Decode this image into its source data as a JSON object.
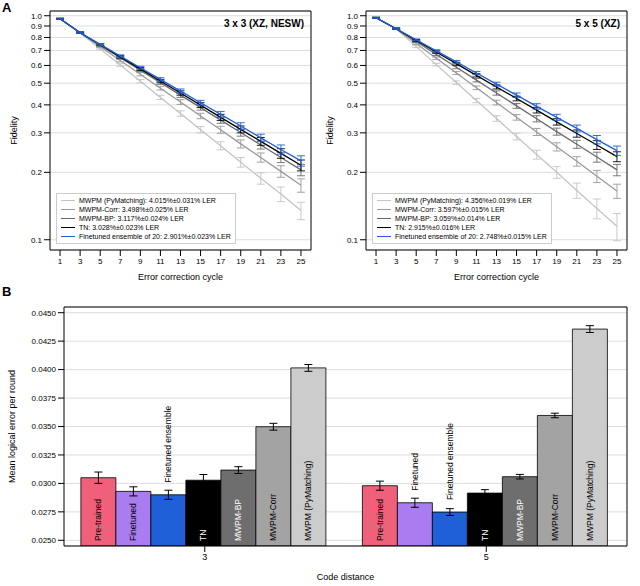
{
  "chart_data": [
    {
      "panel_label": "A",
      "type": "line",
      "title": "3 x 3 (XZ, NESW)",
      "x_label": "Error correction cycle",
      "y_label": "Fidelity",
      "x": [
        1,
        3,
        5,
        7,
        9,
        11,
        13,
        15,
        17,
        19,
        21,
        23,
        25
      ],
      "xlim": [
        0,
        26
      ],
      "xticks": [
        1,
        3,
        5,
        7,
        9,
        11,
        13,
        15,
        17,
        19,
        21,
        23,
        25
      ],
      "log": "y",
      "ylim": [
        0.09,
        1.05
      ],
      "yticks": [
        0.1,
        0.2,
        0.3,
        0.4,
        0.5,
        0.6,
        0.7,
        0.8,
        0.9,
        {
          "value": 1,
          "label": "1.0"
        }
      ],
      "grid": true,
      "legend": "lower left",
      "series": [
        {
          "name": "MWPM (PyMatching): 4.015%±0.031% LER",
          "color": "#c4c4c4",
          "values": [
            0.97,
            0.84,
            0.711,
            0.603,
            0.51,
            0.432,
            0.366,
            0.31,
            0.263,
            0.222,
            0.188,
            0.16,
            0.135
          ],
          "errors": [
            0.004,
            0.006,
            0.007,
            0.008,
            0.009,
            0.009,
            0.01,
            0.01,
            0.011,
            0.011,
            0.011,
            0.012,
            0.012
          ]
        },
        {
          "name": "MWPM-Corr: 3.498%±0.025% LER",
          "color": "#9a9a9a",
          "values": [
            0.97,
            0.84,
            0.728,
            0.631,
            0.548,
            0.475,
            0.412,
            0.357,
            0.31,
            0.268,
            0.233,
            0.202,
            0.175
          ],
          "errors": [
            0.004,
            0.006,
            0.007,
            0.008,
            0.009,
            0.009,
            0.01,
            0.01,
            0.011,
            0.011,
            0.011,
            0.012,
            0.012
          ]
        },
        {
          "name": "MWPM-BP: 3.117%±0.024% LER",
          "color": "#6a6a6a",
          "values": [
            0.97,
            0.84,
            0.739,
            0.65,
            0.572,
            0.503,
            0.442,
            0.389,
            0.342,
            0.301,
            0.265,
            0.233,
            0.205
          ],
          "errors": [
            0.004,
            0.006,
            0.007,
            0.008,
            0.009,
            0.009,
            0.01,
            0.01,
            0.011,
            0.011,
            0.011,
            0.012,
            0.012
          ]
        },
        {
          "name": "TN: 3.028%±0.023% LER",
          "color": "#000000",
          "values": [
            0.97,
            0.84,
            0.742,
            0.655,
            0.579,
            0.511,
            0.452,
            0.399,
            0.352,
            0.311,
            0.275,
            0.243,
            0.215
          ],
          "errors": [
            0.004,
            0.006,
            0.007,
            0.008,
            0.009,
            0.009,
            0.01,
            0.01,
            0.011,
            0.011,
            0.011,
            0.012,
            0.012
          ]
        },
        {
          "name": "Finetuned ensemble of 20: 2.901%±0.023% LER",
          "color": "#1f5fd8",
          "values": [
            0.97,
            0.84,
            0.745,
            0.661,
            0.586,
            0.52,
            0.461,
            0.409,
            0.363,
            0.322,
            0.285,
            0.253,
            0.225
          ],
          "errors": [
            0.004,
            0.006,
            0.007,
            0.008,
            0.009,
            0.009,
            0.01,
            0.01,
            0.011,
            0.011,
            0.011,
            0.012,
            0.012
          ]
        }
      ]
    },
    {
      "type": "line",
      "title": "5 x 5 (XZ)",
      "x_label": "Error correction cycle",
      "y_label": "Fidelity",
      "x": [
        1,
        3,
        5,
        7,
        9,
        11,
        13,
        15,
        17,
        19,
        21,
        23,
        25
      ],
      "xlim": [
        0,
        26
      ],
      "xticks": [
        1,
        3,
        5,
        7,
        9,
        11,
        13,
        15,
        17,
        19,
        21,
        23,
        25
      ],
      "log": "y",
      "ylim": [
        0.09,
        1.05
      ],
      "yticks": [
        0.1,
        0.2,
        0.3,
        0.4,
        0.5,
        0.6,
        0.7,
        0.8,
        0.9,
        {
          "value": 1,
          "label": "1.0"
        }
      ],
      "grid": true,
      "legend": "lower left",
      "series": [
        {
          "name": "MWPM (PyMatching): 4.356%±0.019% LER",
          "color": "#c4c4c4",
          "values": [
            0.98,
            0.875,
            0.728,
            0.605,
            0.503,
            0.418,
            0.348,
            0.289,
            0.24,
            0.2,
            0.166,
            0.138,
            0.115
          ],
          "errors": [
            0.004,
            0.006,
            0.007,
            0.008,
            0.009,
            0.009,
            0.01,
            0.01,
            0.011,
            0.012,
            0.013,
            0.014,
            0.016
          ]
        },
        {
          "name": "MWPM-Corr: 3.597%±0.015% LER",
          "color": "#9a9a9a",
          "values": [
            0.98,
            0.875,
            0.752,
            0.646,
            0.555,
            0.477,
            0.41,
            0.352,
            0.303,
            0.26,
            0.224,
            0.192,
            0.165
          ],
          "errors": [
            0.004,
            0.006,
            0.007,
            0.008,
            0.009,
            0.009,
            0.01,
            0.01,
            0.011,
            0.011,
            0.011,
            0.012,
            0.012
          ]
        },
        {
          "name": "MWPM-BP: 3.059%±0.014% LER",
          "color": "#6a6a6a",
          "values": [
            0.98,
            0.875,
            0.767,
            0.672,
            0.589,
            0.516,
            0.452,
            0.396,
            0.347,
            0.304,
            0.267,
            0.234,
            0.205
          ],
          "errors": [
            0.004,
            0.006,
            0.007,
            0.008,
            0.009,
            0.009,
            0.01,
            0.01,
            0.011,
            0.011,
            0.011,
            0.012,
            0.012
          ]
        },
        {
          "name": "TN: 2.915%±0.016% LER",
          "color": "#000000",
          "values": [
            0.98,
            0.875,
            0.776,
            0.689,
            0.611,
            0.542,
            0.481,
            0.427,
            0.379,
            0.336,
            0.298,
            0.265,
            0.235
          ],
          "errors": [
            0.004,
            0.006,
            0.007,
            0.008,
            0.009,
            0.009,
            0.01,
            0.01,
            0.011,
            0.011,
            0.011,
            0.012,
            0.012
          ]
        },
        {
          "name": "Finetuned ensemble of 20: 2.748%±0.015% LER",
          "color": "#1f5fd8",
          "values": [
            0.98,
            0.875,
            0.781,
            0.697,
            0.622,
            0.555,
            0.495,
            0.442,
            0.394,
            0.352,
            0.314,
            0.28,
            0.25
          ],
          "errors": [
            0.004,
            0.006,
            0.007,
            0.008,
            0.009,
            0.009,
            0.01,
            0.01,
            0.011,
            0.011,
            0.011,
            0.012,
            0.012
          ]
        }
      ]
    },
    {
      "panel_label": "B",
      "type": "bar",
      "x_label": "Code distance",
      "y_label": "Mean logical error per round",
      "categories": [
        "3",
        "5"
      ],
      "ylim": [
        0.0245,
        0.0455
      ],
      "yticks": [
        {
          "value": 0.025,
          "label": "0.0250"
        },
        {
          "value": 0.0275,
          "label": "0.0275"
        },
        {
          "value": 0.03,
          "label": "0.0300"
        },
        {
          "value": 0.0325,
          "label": "0.0325"
        },
        {
          "value": 0.035,
          "label": "0.0350"
        },
        {
          "value": 0.0375,
          "label": "0.0375"
        },
        {
          "value": 0.04,
          "label": "0.0400"
        },
        {
          "value": 0.0425,
          "label": "0.0425"
        },
        {
          "value": 0.045,
          "label": "0.0450"
        }
      ],
      "grid": true,
      "series": [
        {
          "name": "Pre-trained",
          "color": "#f0607a",
          "values": [
            0.0305,
            0.0298
          ],
          "errors": [
            0.0005,
            0.0004
          ]
        },
        {
          "name": "Finetuned",
          "color": "#a97cf0",
          "values": [
            0.0293,
            0.0283
          ],
          "errors": [
            0.0004,
            0.0004
          ]
        },
        {
          "name": "Finetuned ensemble",
          "color": "#1f5fd8",
          "values": [
            0.029,
            0.02748
          ],
          "errors": [
            0.0004,
            0.0003
          ]
        },
        {
          "name": "TN",
          "color": "#000000",
          "values": [
            0.03028,
            0.02915
          ],
          "errors": [
            0.0005,
            0.0003
          ]
        },
        {
          "name": "MWPM-BP",
          "color": "#6e6e6e",
          "values": [
            0.03117,
            0.03059
          ],
          "errors": [
            0.0003,
            0.0002
          ]
        },
        {
          "name": "MWPM-Corr",
          "color": "#a3a3a3",
          "values": [
            0.03498,
            0.03597
          ],
          "errors": [
            0.0003,
            0.0002
          ]
        },
        {
          "name": "MWPM (PyMatching)",
          "color": "#cccccc",
          "values": [
            0.04015,
            0.04356
          ],
          "errors": [
            0.0003,
            0.0003
          ]
        }
      ]
    }
  ]
}
